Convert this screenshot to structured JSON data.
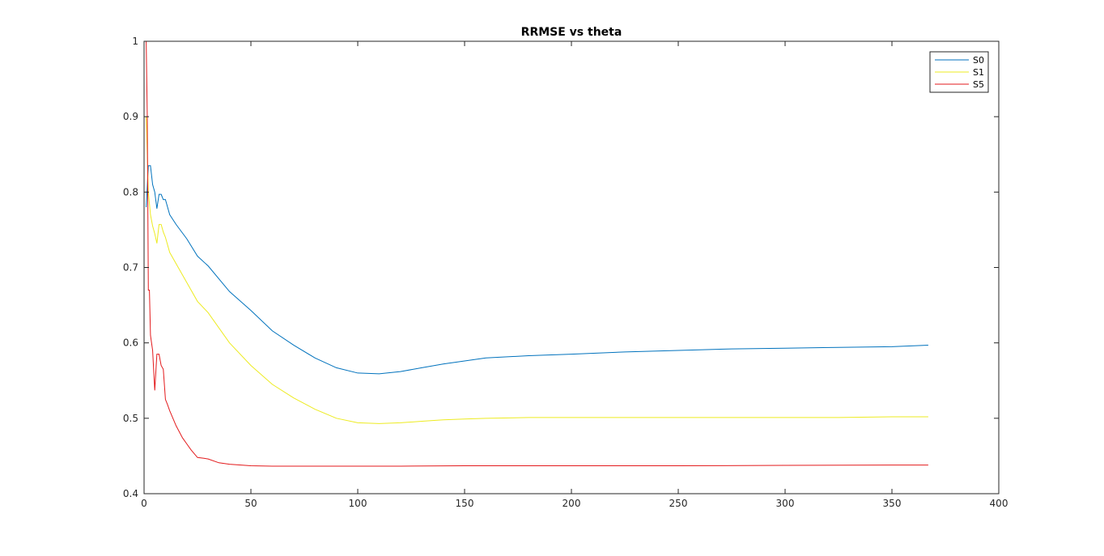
{
  "chart_data": {
    "type": "line",
    "title": "RRMSE vs theta",
    "xlabel": "",
    "ylabel": "",
    "xlim": [
      0,
      400
    ],
    "ylim": [
      0.4,
      1
    ],
    "xticks": [
      0,
      50,
      100,
      150,
      200,
      250,
      300,
      350,
      400
    ],
    "yticks": [
      0.4,
      0.5,
      0.6,
      0.7,
      0.8,
      0.9,
      1
    ],
    "xtick_labels": [
      "0",
      "50",
      "100",
      "150",
      "200",
      "250",
      "300",
      "350",
      "400"
    ],
    "ytick_labels": [
      "0.4",
      "0.5",
      "0.6",
      "0.7",
      "0.8",
      "0.9",
      "1"
    ],
    "grid": false,
    "legend_position": "top-right",
    "series": [
      {
        "name": "S0",
        "color": "#0072BD",
        "x": [
          1,
          2,
          3,
          4,
          5,
          6,
          7,
          8,
          9,
          10,
          12,
          15,
          20,
          25,
          30,
          40,
          50,
          60,
          70,
          80,
          90,
          100,
          110,
          120,
          130,
          140,
          150,
          160,
          180,
          200,
          225,
          250,
          275,
          300,
          325,
          350,
          367
        ],
        "y": [
          0.78,
          0.835,
          0.835,
          0.81,
          0.8,
          0.778,
          0.797,
          0.797,
          0.79,
          0.79,
          0.77,
          0.757,
          0.738,
          0.715,
          0.702,
          0.668,
          0.643,
          0.616,
          0.597,
          0.58,
          0.567,
          0.56,
          0.559,
          0.562,
          0.567,
          0.572,
          0.576,
          0.58,
          0.583,
          0.585,
          0.588,
          0.59,
          0.592,
          0.593,
          0.594,
          0.595,
          0.597
        ]
      },
      {
        "name": "S1",
        "color": "#EDEB21",
        "x": [
          1,
          2,
          3,
          4,
          5,
          6,
          7,
          8,
          9,
          10,
          12,
          15,
          20,
          25,
          30,
          40,
          50,
          60,
          70,
          80,
          90,
          100,
          110,
          120,
          130,
          140,
          150,
          160,
          180,
          200,
          225,
          250,
          275,
          300,
          325,
          350,
          367
        ],
        "y": [
          0.9,
          0.8,
          0.77,
          0.755,
          0.745,
          0.732,
          0.757,
          0.757,
          0.747,
          0.74,
          0.72,
          0.705,
          0.68,
          0.655,
          0.64,
          0.6,
          0.57,
          0.545,
          0.527,
          0.512,
          0.5,
          0.494,
          0.493,
          0.494,
          0.496,
          0.498,
          0.499,
          0.5,
          0.501,
          0.501,
          0.501,
          0.501,
          0.501,
          0.501,
          0.501,
          0.502,
          0.502
        ]
      },
      {
        "name": "S5",
        "color": "#E31A1C",
        "x": [
          1,
          1.5,
          2,
          2.5,
          3,
          4,
          5,
          6,
          7,
          8,
          9,
          10,
          11,
          12,
          15,
          18,
          20,
          22,
          25,
          28,
          30,
          35,
          40,
          50,
          60,
          80,
          100,
          120,
          150,
          200,
          250,
          300,
          350,
          367
        ],
        "y": [
          1.0,
          0.9,
          0.67,
          0.67,
          0.61,
          0.59,
          0.537,
          0.585,
          0.585,
          0.57,
          0.565,
          0.525,
          0.518,
          0.51,
          0.49,
          0.474,
          0.466,
          0.458,
          0.448,
          0.447,
          0.446,
          0.441,
          0.439,
          0.437,
          0.4365,
          0.4365,
          0.4365,
          0.4365,
          0.437,
          0.437,
          0.437,
          0.4375,
          0.438,
          0.438
        ]
      }
    ]
  }
}
